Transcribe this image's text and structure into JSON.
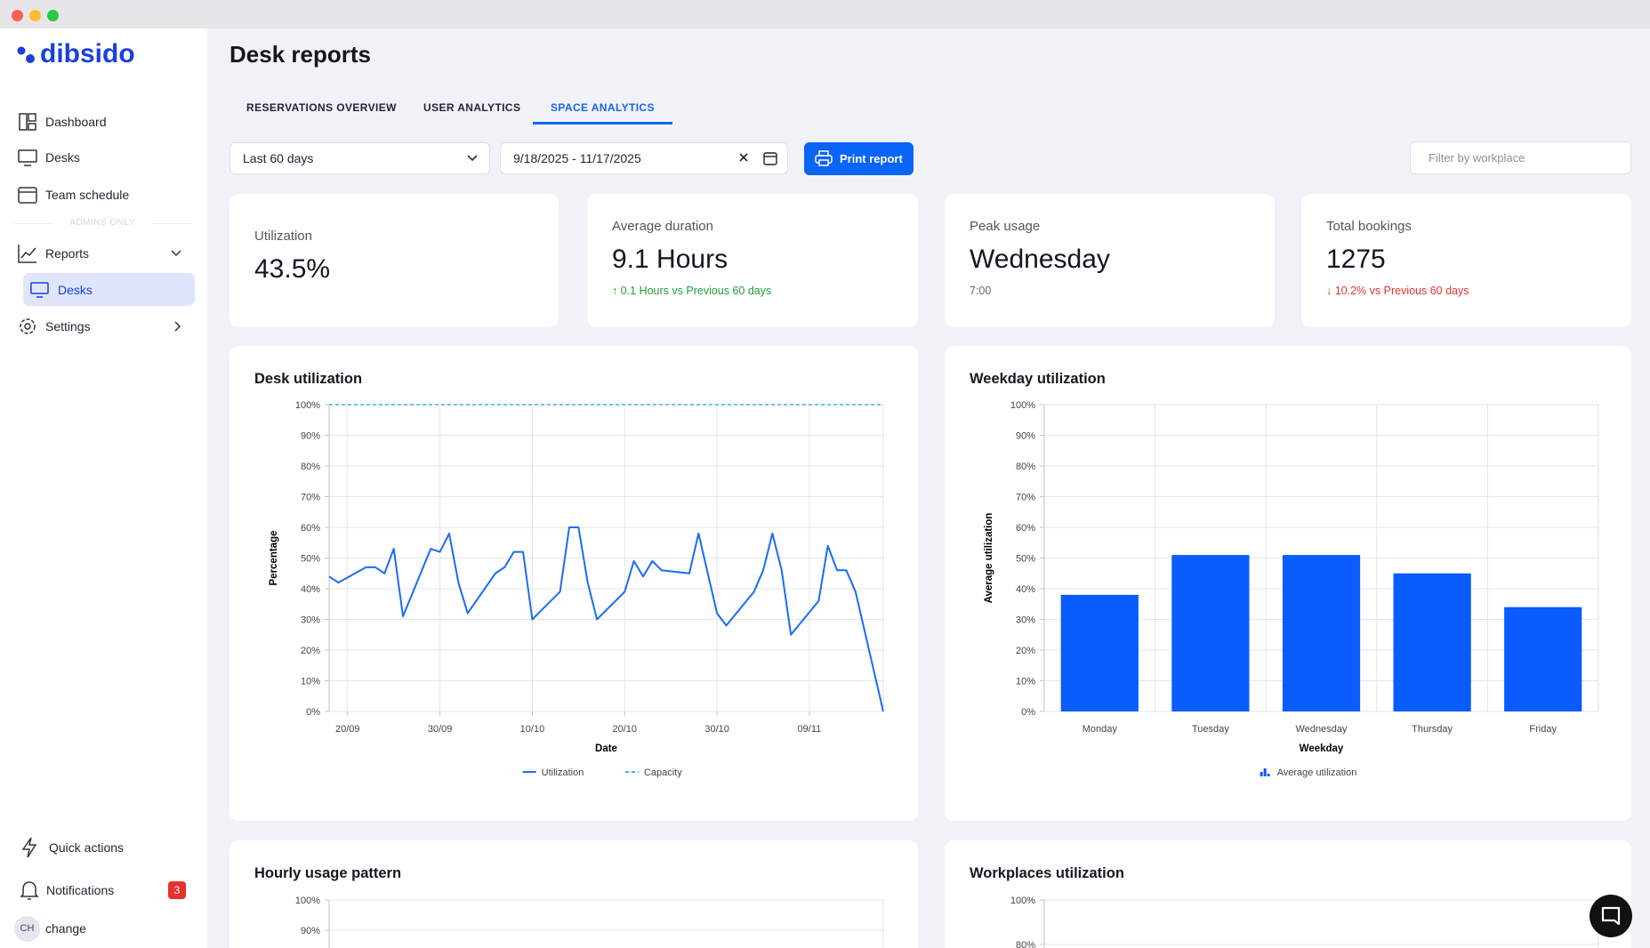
{
  "sidebar": {
    "logo": "dibsido",
    "nav": [
      "Dashboard",
      "Desks",
      "Team schedule"
    ],
    "section_label": "ADMINS ONLY",
    "reports": "Reports",
    "reports_sub": [
      "Desks"
    ],
    "settings": "Settings",
    "footer": {
      "quick_actions": "Quick actions",
      "notifications": "Notifications",
      "notification_count": 3,
      "avatar": "CH",
      "user": "change"
    }
  },
  "header": {
    "title": "Desk reports",
    "tabs": [
      "RESERVATIONS OVERVIEW",
      "USER ANALYTICS",
      "SPACE ANALYTICS"
    ],
    "active_tab": 2
  },
  "filters": {
    "range": "Last 60 days",
    "dates": "9/18/2025 - 11/17/2025",
    "print": "Print report",
    "workplace_placeholder": "Filter by workplace"
  },
  "stats": [
    {
      "label": "Utilization",
      "value": "43.5%"
    },
    {
      "label": "Average duration",
      "value": "9.1 Hours",
      "change": "↑ 0.1 Hours vs Previous 60 days",
      "color": "#1f9d3a"
    },
    {
      "label": "Peak usage",
      "value": "Wednesday",
      "note": "7:00"
    },
    {
      "label": "Total bookings",
      "value": "1275",
      "change": "↓ 10.2% vs Previous 60 days",
      "color": "#e5322d"
    }
  ],
  "chart_data": [
    {
      "type": "line",
      "title": "Desk utilization",
      "x_label": "Date",
      "y_label": "Percentage",
      "x": [
        "18/09",
        "19/09",
        "22/09",
        "23/09",
        "24/09",
        "25/09",
        "26/09",
        "29/09",
        "30/09",
        "01/10",
        "02/10",
        "03/10",
        "06/10",
        "07/10",
        "08/10",
        "09/10",
        "10/10",
        "13/10",
        "14/10",
        "15/10",
        "16/10",
        "17/10",
        "20/10",
        "21/10",
        "22/10",
        "23/10",
        "24/10",
        "27/10",
        "28/10",
        "29/10",
        "30/10",
        "31/10",
        "03/11",
        "04/11",
        "05/11",
        "06/11",
        "07/11",
        "10/11",
        "11/11",
        "12/11",
        "13/11",
        "14/11",
        "17/11"
      ],
      "xlim": [
        "18/09",
        "17/11"
      ],
      "xticks": [
        "20/09",
        "30/09",
        "10/10",
        "20/10",
        "30/10",
        "09/11"
      ],
      "ylim": [
        0,
        100
      ],
      "yticks": [
        {
          "value": 0,
          "label": "0%"
        },
        {
          "value": 10,
          "label": "10%"
        },
        {
          "value": 20,
          "label": "20%"
        },
        {
          "value": 30,
          "label": "30%"
        },
        {
          "value": 40,
          "label": "40%"
        },
        {
          "value": 50,
          "label": "50%"
        },
        {
          "value": 60,
          "label": "60%"
        },
        {
          "value": 70,
          "label": "70%"
        },
        {
          "value": 80,
          "label": "80%"
        },
        {
          "value": 90,
          "label": "90%"
        },
        {
          "value": 100,
          "label": "100%"
        }
      ],
      "grid": true,
      "legend": "bottom",
      "series": [
        {
          "name": "Utilization",
          "color": "#1a6cf5",
          "dashed": false,
          "values": [
            44,
            42,
            47,
            47,
            45,
            53,
            31,
            53,
            52,
            58,
            42,
            32,
            45,
            47,
            52,
            52,
            30,
            39,
            60,
            60,
            42,
            30,
            39,
            49,
            44,
            49,
            46,
            45,
            58,
            45,
            32,
            28,
            39,
            46,
            58,
            46,
            25,
            36,
            54,
            46,
            46,
            39,
            0
          ]
        },
        {
          "name": "Capacity",
          "color": "#35b7e0",
          "dashed": true,
          "values": [
            100,
            100,
            100,
            100,
            100,
            100,
            100,
            100,
            100,
            100,
            100,
            100,
            100,
            100,
            100,
            100,
            100,
            100,
            100,
            100,
            100,
            100,
            100,
            100,
            100,
            100,
            100,
            100,
            100,
            100,
            100,
            100,
            100,
            100,
            100,
            100,
            100,
            100,
            100,
            100,
            100,
            100,
            100
          ]
        }
      ]
    },
    {
      "type": "bar",
      "title": "Weekday utilization",
      "x_label": "Weekday",
      "y_label": "Average utilization",
      "categories": [
        "Monday",
        "Tuesday",
        "Wednesday",
        "Thursday",
        "Friday"
      ],
      "ylim": [
        0,
        100
      ],
      "yticks": [
        {
          "value": 0,
          "label": "0%"
        },
        {
          "value": 10,
          "label": "10%"
        },
        {
          "value": 20,
          "label": "20%"
        },
        {
          "value": 30,
          "label": "30%"
        },
        {
          "value": 40,
          "label": "40%"
        },
        {
          "value": 50,
          "label": "50%"
        },
        {
          "value": 60,
          "label": "60%"
        },
        {
          "value": 70,
          "label": "70%"
        },
        {
          "value": 80,
          "label": "80%"
        },
        {
          "value": 90,
          "label": "90%"
        },
        {
          "value": 100,
          "label": "100%"
        }
      ],
      "grid": true,
      "legend": "bottom",
      "series": [
        {
          "name": "Average utilization",
          "color": "#0a5cff",
          "values": [
            38,
            51,
            51,
            45,
            34
          ]
        }
      ]
    },
    {
      "type": "line",
      "title": "Hourly usage pattern",
      "ylim": [
        0,
        100
      ],
      "yticks": [
        {
          "value": 90,
          "label": "90%"
        },
        {
          "value": 100,
          "label": "100%"
        }
      ],
      "grid": true
    },
    {
      "type": "bar",
      "title": "Workplaces utilization",
      "ylim": [
        0,
        100
      ],
      "yticks": [
        {
          "value": 80,
          "label": "80%"
        },
        {
          "value": 100,
          "label": "100%"
        }
      ],
      "grid": true
    }
  ]
}
